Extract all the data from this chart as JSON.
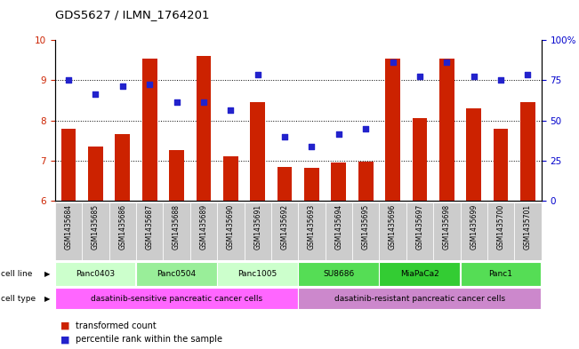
{
  "title": "GDS5627 / ILMN_1764201",
  "samples": [
    "GSM1435684",
    "GSM1435685",
    "GSM1435686",
    "GSM1435687",
    "GSM1435688",
    "GSM1435689",
    "GSM1435690",
    "GSM1435691",
    "GSM1435692",
    "GSM1435693",
    "GSM1435694",
    "GSM1435695",
    "GSM1435696",
    "GSM1435697",
    "GSM1435698",
    "GSM1435699",
    "GSM1435700",
    "GSM1435701"
  ],
  "bar_values": [
    7.8,
    7.35,
    7.65,
    9.55,
    7.25,
    9.6,
    7.1,
    8.45,
    6.85,
    6.82,
    6.95,
    6.98,
    9.55,
    8.05,
    9.55,
    8.3,
    7.8,
    8.45
  ],
  "dot_values_left": [
    9.0,
    8.65,
    8.85,
    8.9,
    8.45,
    8.45,
    8.25,
    9.15,
    7.6,
    7.35,
    7.65,
    7.8,
    9.45,
    9.1,
    9.45,
    9.1,
    9.0,
    9.15
  ],
  "ylim_left": [
    6,
    10
  ],
  "ylim_right": [
    0,
    100
  ],
  "yticks_left": [
    6,
    7,
    8,
    9,
    10
  ],
  "yticks_right": [
    0,
    25,
    50,
    75,
    100
  ],
  "ytick_labels_right": [
    "0",
    "25",
    "50",
    "75",
    "100%"
  ],
  "bar_color": "#cc2200",
  "dot_color": "#2222cc",
  "bar_width": 0.55,
  "cell_lines": [
    {
      "label": "Panc0403",
      "start": 0,
      "end": 2,
      "color": "#ccffcc"
    },
    {
      "label": "Panc0504",
      "start": 3,
      "end": 5,
      "color": "#99ee99"
    },
    {
      "label": "Panc1005",
      "start": 6,
      "end": 8,
      "color": "#ccffcc"
    },
    {
      "label": "SU8686",
      "start": 9,
      "end": 11,
      "color": "#55dd55"
    },
    {
      "label": "MiaPaCa2",
      "start": 12,
      "end": 14,
      "color": "#33cc33"
    },
    {
      "label": "Panc1",
      "start": 15,
      "end": 17,
      "color": "#55dd55"
    }
  ],
  "cell_types": [
    {
      "label": "dasatinib-sensitive pancreatic cancer cells",
      "start": 0,
      "end": 8,
      "color": "#ff66ff"
    },
    {
      "label": "dasatinib-resistant pancreatic cancer cells",
      "start": 9,
      "end": 17,
      "color": "#cc88cc"
    }
  ],
  "tick_color_left": "#cc2200",
  "tick_color_right": "#0000cc",
  "grid_dotted_at": [
    7,
    8,
    9
  ],
  "label_cell_line": "cell line",
  "label_cell_type": "cell type",
  "legend_bar_label": "transformed count",
  "legend_dot_label": "percentile rank within the sample"
}
